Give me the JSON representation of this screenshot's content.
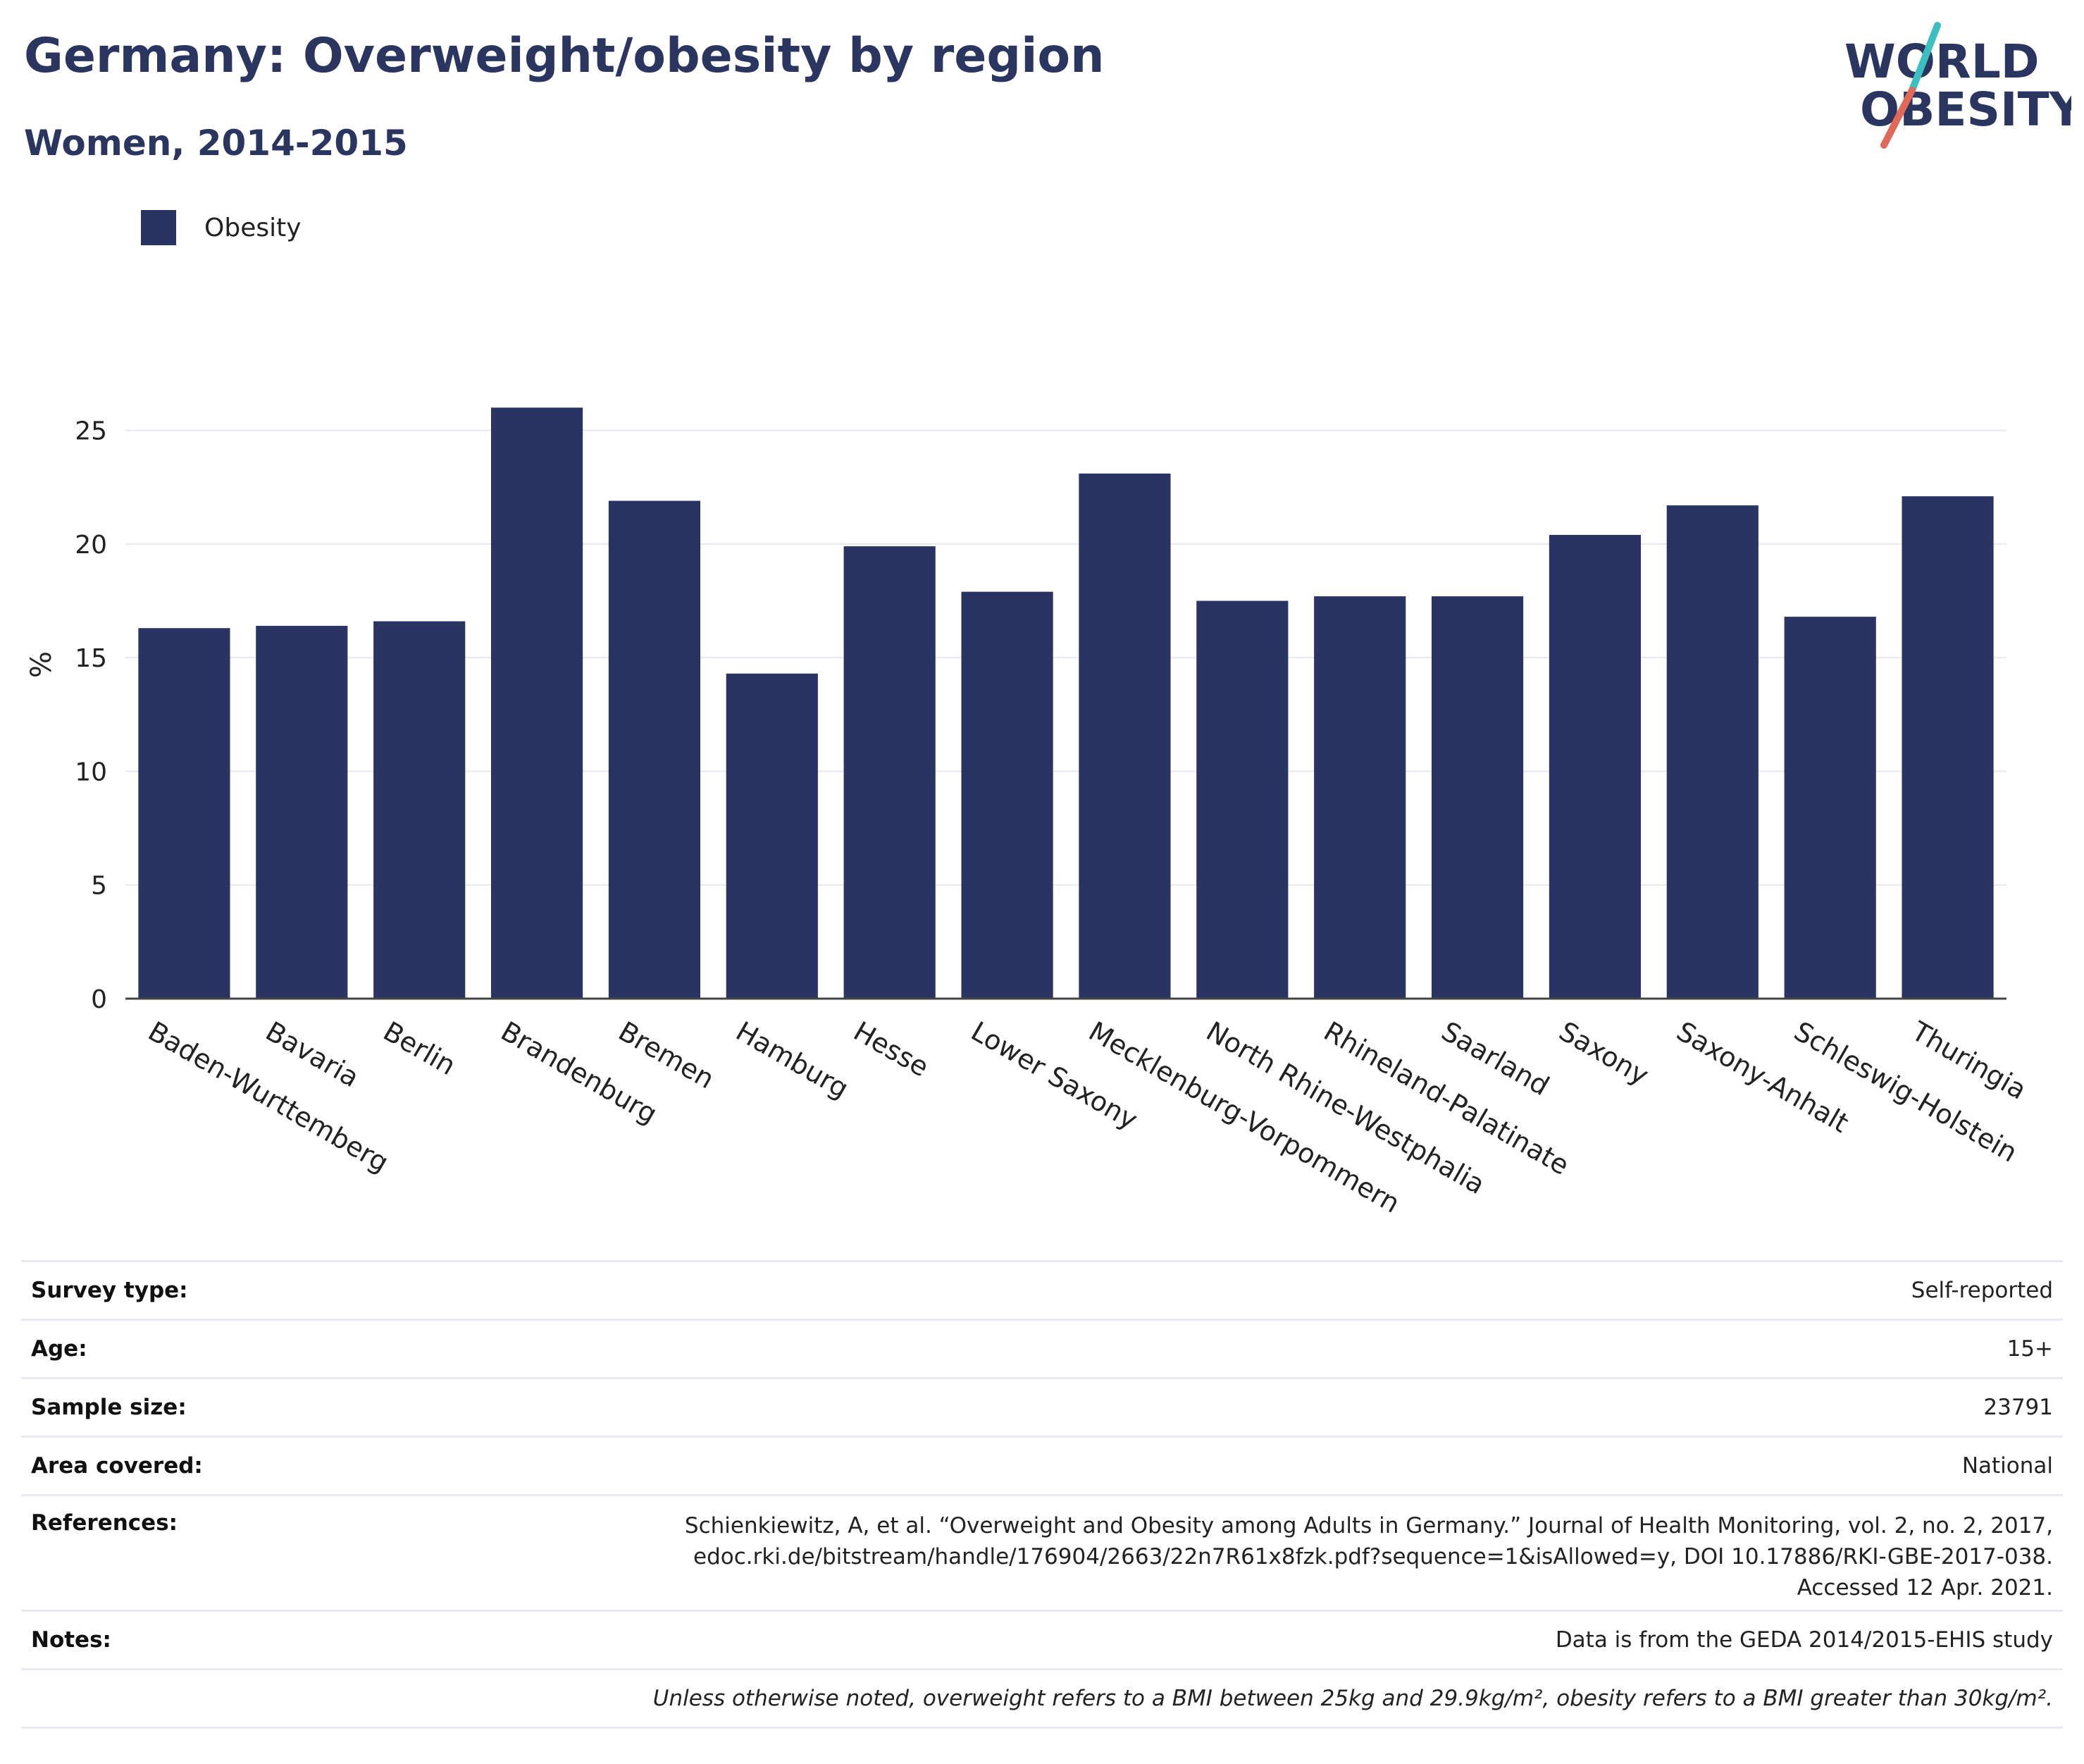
{
  "title": "Germany: Overweight/obesity by region",
  "subtitle": "Women, 2014-2015",
  "logo": {
    "line1": "WORLD",
    "line2": "OBESITY",
    "colors": {
      "text": "#2a3560",
      "slash_top": "#3cbfc0",
      "slash_bottom": "#e2695a"
    }
  },
  "legend": {
    "label": "Obesity",
    "color": "#293462"
  },
  "chart_data": {
    "type": "bar",
    "title": "Germany: Overweight/obesity by region",
    "subtitle": "Women, 2014-2015",
    "xlabel": "",
    "ylabel": "%",
    "ylim": [
      0,
      27.5
    ],
    "yticks": [
      0,
      5,
      10,
      15,
      20,
      25
    ],
    "grid": true,
    "legend_position": "top-left",
    "categories": [
      "Baden-Wurttemberg",
      "Bavaria",
      "Berlin",
      "Brandenburg",
      "Bremen",
      "Hamburg",
      "Hesse",
      "Lower Saxony",
      "Mecklenburg-Vorpommern",
      "North Rhine-Westphalia",
      "Rhineland-Palatinate",
      "Saarland",
      "Saxony",
      "Saxony-Anhalt",
      "Schleswig-Holstein",
      "Thuringia"
    ],
    "series": [
      {
        "name": "Obesity",
        "color": "#293462",
        "values": [
          16.3,
          16.4,
          16.6,
          26.0,
          21.9,
          14.3,
          19.9,
          17.9,
          23.1,
          17.5,
          17.7,
          17.7,
          20.4,
          21.7,
          16.8,
          22.1
        ]
      }
    ]
  },
  "info": {
    "survey_type": {
      "label": "Survey type:",
      "value": "Self-reported"
    },
    "age": {
      "label": "Age:",
      "value": "15+"
    },
    "sample_size": {
      "label": "Sample size:",
      "value": "23791"
    },
    "area_covered": {
      "label": "Area covered:",
      "value": "National"
    },
    "references": {
      "label": "References:",
      "line1": "Schienkiewitz, A, et al. “Overweight and Obesity among Adults in Germany.” Journal of Health Monitoring, vol. 2, no. 2, 2017,",
      "line2": "edoc.rki.de/bitstream/handle/176904/2663/22n7R61x8fzk.pdf?sequence=1&isAllowed=y, DOI 10.17886/RKI-GBE-2017-038.",
      "line3": "Accessed 12 Apr. 2021."
    },
    "notes": {
      "label": "Notes:",
      "value": "Data is from the GEDA 2014/2015-EHIS study"
    },
    "definition": "Unless otherwise noted, overweight refers to a BMI between 25kg and 29.9kg/m², obesity refers to a BMI greater than 30kg/m²."
  }
}
